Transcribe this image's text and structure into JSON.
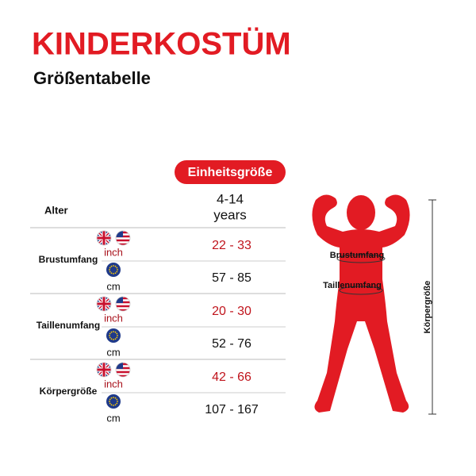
{
  "header": {
    "title": "KINDERKOSTÜM",
    "subtitle": "Größentabelle"
  },
  "table": {
    "size_label": "Einheitsgröße",
    "age_label": "Alter",
    "age_value": [
      "4-14",
      "years"
    ],
    "rows": [
      {
        "label": "Brustumfang",
        "measurements": [
          {
            "unit": "inch",
            "value": "22 - 33"
          },
          {
            "unit": "cm",
            "value": "57 - 85"
          }
        ]
      },
      {
        "label": "Taillenumfang",
        "measurements": [
          {
            "unit": "inch",
            "value": "20 - 30"
          },
          {
            "unit": "cm",
            "value": "52 - 76"
          }
        ]
      },
      {
        "label": "Körpergröße",
        "measurements": [
          {
            "unit": "inch",
            "value": "42 - 66"
          },
          {
            "unit": "cm",
            "value": "107 - 167"
          }
        ]
      }
    ]
  },
  "figure": {
    "labels": [
      "Brustumfang",
      "Taillenumfang",
      "Körpergröße"
    ]
  }
}
